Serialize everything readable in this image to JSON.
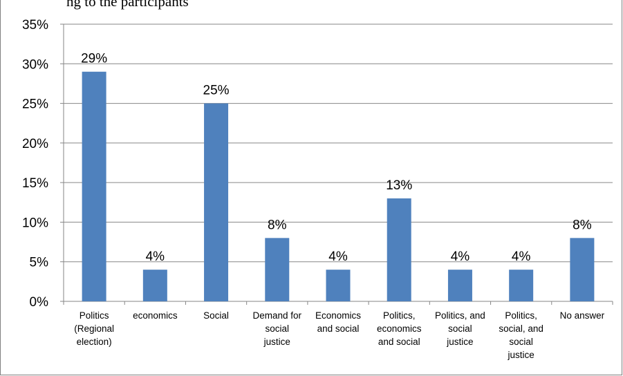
{
  "caption": "ng to the participants",
  "chart_data": {
    "type": "bar",
    "title": "",
    "xlabel": "",
    "ylabel": "",
    "ylim": [
      0,
      35
    ],
    "y_ticks": [
      "0%",
      "5%",
      "10%",
      "15%",
      "20%",
      "25%",
      "30%",
      "35%"
    ],
    "grid": true,
    "legend": "none",
    "bar_color": "#4F81BD",
    "categories": [
      "Politics (Regional election)",
      "economics",
      "Social",
      "Demand for social justice",
      "Economics and social",
      "Politics, economics and social",
      "Politics, and social justice",
      "Politics, social, and social justice",
      "No answer"
    ],
    "category_lines": [
      [
        "Politics",
        "(Regional",
        "election)"
      ],
      [
        "economics"
      ],
      [
        "Social"
      ],
      [
        "Demand for",
        "social",
        "justice"
      ],
      [
        "Economics",
        "and social"
      ],
      [
        "Politics,",
        "economics",
        "and social"
      ],
      [
        "Politics, and",
        "social",
        "justice"
      ],
      [
        "Politics,",
        "social, and",
        "social",
        "justice"
      ],
      [
        "No answer"
      ]
    ],
    "values": [
      29,
      4,
      25,
      8,
      4,
      13,
      4,
      4,
      8
    ],
    "data_labels": [
      "29%",
      "4%",
      "25%",
      "8%",
      "4%",
      "13%",
      "4%",
      "4%",
      "8%"
    ]
  }
}
